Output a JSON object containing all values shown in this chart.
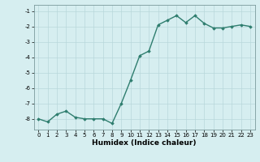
{
  "x": [
    0,
    1,
    2,
    3,
    4,
    5,
    6,
    7,
    8,
    9,
    10,
    11,
    12,
    13,
    14,
    15,
    16,
    17,
    18,
    19,
    20,
    21,
    22,
    23
  ],
  "y": [
    -8.0,
    -8.2,
    -7.7,
    -7.5,
    -7.9,
    -8.0,
    -8.0,
    -8.0,
    -8.3,
    -7.0,
    -5.5,
    -3.9,
    -3.6,
    -1.9,
    -1.6,
    -1.3,
    -1.75,
    -1.3,
    -1.8,
    -2.1,
    -2.1,
    -2.0,
    -1.9,
    -2.0
  ],
  "line_color": "#2e7d6e",
  "marker": "D",
  "marker_size": 1.8,
  "bg_color": "#d6eef0",
  "grid_color": "#b8d8db",
  "xlabel": "Humidex (Indice chaleur)",
  "xlim": [
    -0.5,
    23.5
  ],
  "ylim": [
    -8.7,
    -0.6
  ],
  "yticks": [
    -8,
    -7,
    -6,
    -5,
    -4,
    -3,
    -2,
    -1
  ],
  "xticks": [
    0,
    1,
    2,
    3,
    4,
    5,
    6,
    7,
    8,
    9,
    10,
    11,
    12,
    13,
    14,
    15,
    16,
    17,
    18,
    19,
    20,
    21,
    22,
    23
  ],
  "tick_fontsize": 5.0,
  "xlabel_fontsize": 6.5,
  "line_width": 1.0
}
